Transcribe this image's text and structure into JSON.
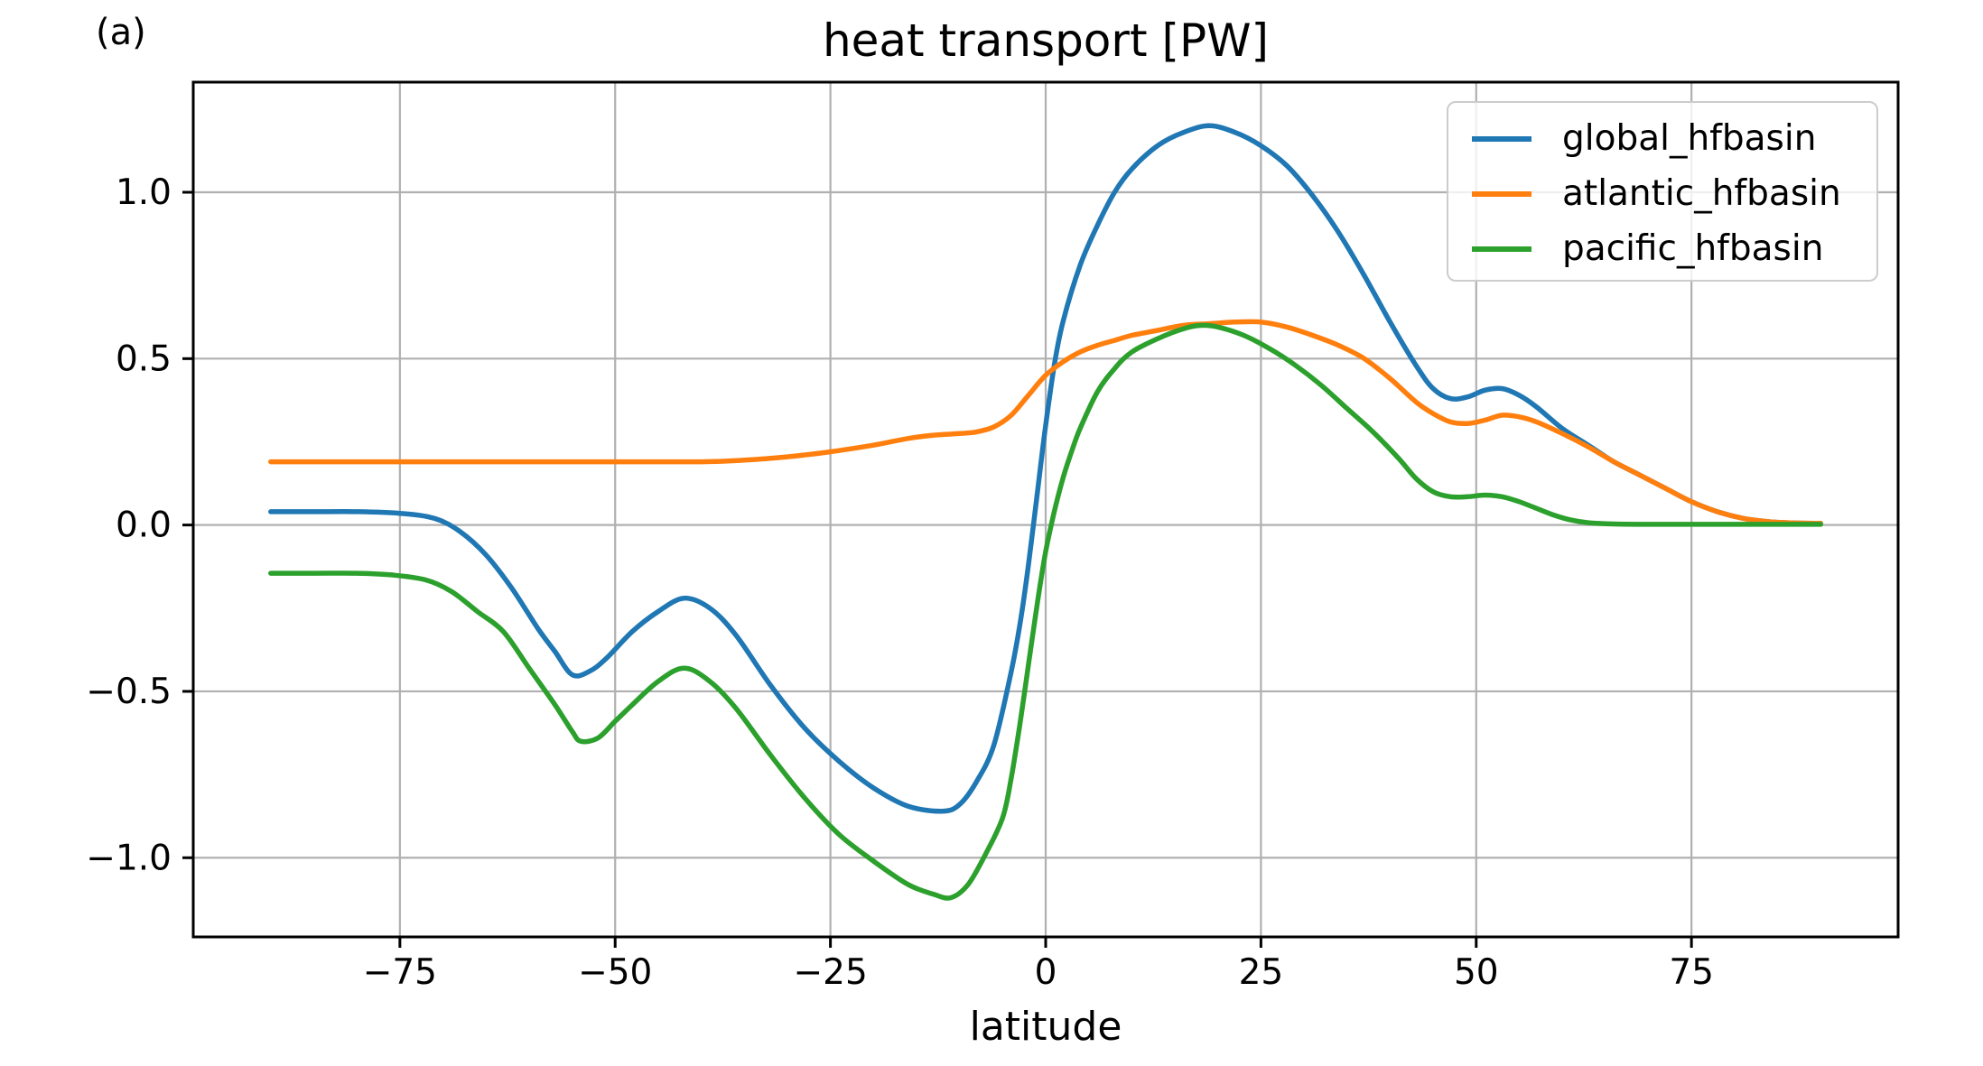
{
  "figure": {
    "panel_label": "(a)",
    "background": "#ffffff"
  },
  "chart_data": {
    "type": "line",
    "title": "heat transport [PW]",
    "xlabel": "latitude",
    "ylabel": "",
    "xlim": [
      -99,
      99
    ],
    "ylim": [
      -1.238,
      1.331
    ],
    "xticks": [
      -75,
      -50,
      -25,
      0,
      25,
      50,
      75
    ],
    "xtick_labels": [
      "−75",
      "−50",
      "−25",
      "0",
      "25",
      "50",
      "75"
    ],
    "yticks": [
      -1.0,
      -0.5,
      0.0,
      0.5,
      1.0
    ],
    "ytick_labels": [
      "−1.0",
      "−0.5",
      "0.0",
      "0.5",
      "1.0"
    ],
    "grid": true,
    "grid_color": "#b0b0b0",
    "axis_color": "#000000",
    "legend": {
      "position": "upper right",
      "frame_color": "#cccccc"
    },
    "series": [
      {
        "name": "global_hfbasin",
        "color": "#1f77b4",
        "points": [
          [
            -90,
            0.04
          ],
          [
            -85,
            0.04
          ],
          [
            -80,
            0.04
          ],
          [
            -75,
            0.035
          ],
          [
            -71,
            0.02
          ],
          [
            -68,
            -0.02
          ],
          [
            -65,
            -0.09
          ],
          [
            -62,
            -0.19
          ],
          [
            -59,
            -0.31
          ],
          [
            -57,
            -0.38
          ],
          [
            -55,
            -0.45
          ],
          [
            -53,
            -0.44
          ],
          [
            -51,
            -0.4
          ],
          [
            -48,
            -0.32
          ],
          [
            -45,
            -0.26
          ],
          [
            -42,
            -0.22
          ],
          [
            -39,
            -0.25
          ],
          [
            -36,
            -0.33
          ],
          [
            -32,
            -0.48
          ],
          [
            -28,
            -0.61
          ],
          [
            -24,
            -0.71
          ],
          [
            -20,
            -0.79
          ],
          [
            -16,
            -0.845
          ],
          [
            -12,
            -0.86
          ],
          [
            -10,
            -0.84
          ],
          [
            -8,
            -0.77
          ],
          [
            -6,
            -0.66
          ],
          [
            -4,
            -0.44
          ],
          [
            -3,
            -0.3
          ],
          [
            -2,
            -0.12
          ],
          [
            -1,
            0.09
          ],
          [
            0,
            0.3
          ],
          [
            1,
            0.48
          ],
          [
            2,
            0.61
          ],
          [
            4,
            0.78
          ],
          [
            6,
            0.9
          ],
          [
            8,
            1.0
          ],
          [
            10,
            1.07
          ],
          [
            13,
            1.14
          ],
          [
            16,
            1.18
          ],
          [
            19,
            1.2
          ],
          [
            22,
            1.18
          ],
          [
            25,
            1.14
          ],
          [
            28,
            1.08
          ],
          [
            31,
            0.99
          ],
          [
            34,
            0.88
          ],
          [
            37,
            0.75
          ],
          [
            40,
            0.61
          ],
          [
            43,
            0.48
          ],
          [
            45,
            0.41
          ],
          [
            47,
            0.38
          ],
          [
            49,
            0.385
          ],
          [
            51,
            0.405
          ],
          [
            53,
            0.41
          ],
          [
            55,
            0.39
          ],
          [
            57,
            0.355
          ],
          [
            60,
            0.29
          ],
          [
            63,
            0.24
          ],
          [
            66,
            0.19
          ],
          [
            69,
            0.15
          ],
          [
            72,
            0.11
          ],
          [
            75,
            0.07
          ],
          [
            78,
            0.04
          ],
          [
            81,
            0.02
          ],
          [
            84,
            0.01
          ],
          [
            87,
            0.006
          ],
          [
            90,
            0.005
          ]
        ]
      },
      {
        "name": "atlantic_hfbasin",
        "color": "#ff7f0e",
        "points": [
          [
            -90,
            0.19
          ],
          [
            -80,
            0.19
          ],
          [
            -70,
            0.19
          ],
          [
            -60,
            0.19
          ],
          [
            -50,
            0.19
          ],
          [
            -40,
            0.19
          ],
          [
            -35,
            0.195
          ],
          [
            -30,
            0.205
          ],
          [
            -25,
            0.22
          ],
          [
            -20,
            0.24
          ],
          [
            -16,
            0.26
          ],
          [
            -13,
            0.27
          ],
          [
            -10,
            0.275
          ],
          [
            -8,
            0.28
          ],
          [
            -6,
            0.295
          ],
          [
            -4,
            0.33
          ],
          [
            -2,
            0.39
          ],
          [
            0,
            0.45
          ],
          [
            2,
            0.49
          ],
          [
            4,
            0.52
          ],
          [
            6,
            0.54
          ],
          [
            8,
            0.555
          ],
          [
            10,
            0.57
          ],
          [
            13,
            0.585
          ],
          [
            16,
            0.6
          ],
          [
            19,
            0.605
          ],
          [
            22,
            0.61
          ],
          [
            25,
            0.61
          ],
          [
            28,
            0.595
          ],
          [
            31,
            0.57
          ],
          [
            34,
            0.54
          ],
          [
            37,
            0.5
          ],
          [
            40,
            0.44
          ],
          [
            43,
            0.37
          ],
          [
            45,
            0.335
          ],
          [
            47,
            0.31
          ],
          [
            49,
            0.305
          ],
          [
            51,
            0.315
          ],
          [
            53,
            0.33
          ],
          [
            55,
            0.325
          ],
          [
            57,
            0.31
          ],
          [
            60,
            0.275
          ],
          [
            63,
            0.235
          ],
          [
            66,
            0.19
          ],
          [
            69,
            0.15
          ],
          [
            72,
            0.11
          ],
          [
            75,
            0.07
          ],
          [
            78,
            0.04
          ],
          [
            81,
            0.02
          ],
          [
            84,
            0.01
          ],
          [
            87,
            0.006
          ],
          [
            90,
            0.005
          ]
        ]
      },
      {
        "name": "pacific_hfbasin",
        "color": "#2ca02c",
        "points": [
          [
            -90,
            -0.145
          ],
          [
            -85,
            -0.145
          ],
          [
            -80,
            -0.145
          ],
          [
            -76,
            -0.15
          ],
          [
            -72,
            -0.165
          ],
          [
            -69,
            -0.2
          ],
          [
            -66,
            -0.26
          ],
          [
            -63,
            -0.32
          ],
          [
            -60,
            -0.43
          ],
          [
            -57,
            -0.54
          ],
          [
            -55,
            -0.62
          ],
          [
            -54,
            -0.65
          ],
          [
            -52,
            -0.64
          ],
          [
            -50,
            -0.59
          ],
          [
            -48,
            -0.54
          ],
          [
            -45,
            -0.47
          ],
          [
            -42,
            -0.43
          ],
          [
            -39,
            -0.47
          ],
          [
            -36,
            -0.55
          ],
          [
            -32,
            -0.69
          ],
          [
            -28,
            -0.82
          ],
          [
            -24,
            -0.93
          ],
          [
            -20,
            -1.01
          ],
          [
            -16,
            -1.08
          ],
          [
            -13,
            -1.11
          ],
          [
            -11,
            -1.12
          ],
          [
            -9,
            -1.08
          ],
          [
            -7,
            -0.99
          ],
          [
            -5,
            -0.88
          ],
          [
            -4,
            -0.76
          ],
          [
            -3,
            -0.6
          ],
          [
            -2,
            -0.42
          ],
          [
            -1,
            -0.24
          ],
          [
            0,
            -0.08
          ],
          [
            1,
            0.04
          ],
          [
            2,
            0.14
          ],
          [
            3,
            0.22
          ],
          [
            4,
            0.29
          ],
          [
            6,
            0.4
          ],
          [
            8,
            0.47
          ],
          [
            10,
            0.52
          ],
          [
            13,
            0.56
          ],
          [
            16,
            0.59
          ],
          [
            18,
            0.6
          ],
          [
            20,
            0.595
          ],
          [
            23,
            0.57
          ],
          [
            26,
            0.53
          ],
          [
            29,
            0.48
          ],
          [
            32,
            0.42
          ],
          [
            35,
            0.35
          ],
          [
            38,
            0.28
          ],
          [
            41,
            0.2
          ],
          [
            43,
            0.14
          ],
          [
            45,
            0.1
          ],
          [
            47,
            0.085
          ],
          [
            49,
            0.085
          ],
          [
            51,
            0.09
          ],
          [
            53,
            0.085
          ],
          [
            55,
            0.07
          ],
          [
            57,
            0.05
          ],
          [
            59,
            0.03
          ],
          [
            61,
            0.015
          ],
          [
            63,
            0.007
          ],
          [
            66,
            0.003
          ],
          [
            70,
            0.002
          ],
          [
            75,
            0.002
          ],
          [
            80,
            0.002
          ],
          [
            85,
            0.002
          ],
          [
            90,
            0.002
          ]
        ]
      }
    ]
  }
}
